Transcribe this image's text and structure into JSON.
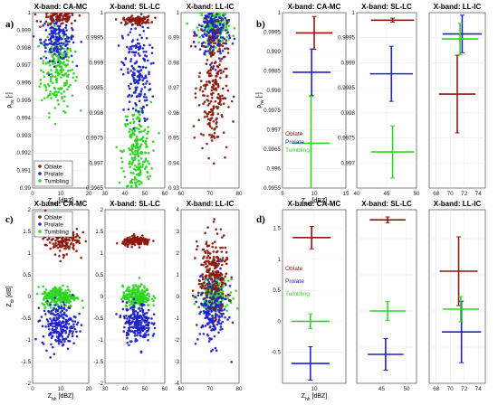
{
  "labels": {
    "a": "a)",
    "b": "b)",
    "c": "c)",
    "d": "d)"
  },
  "legend": {
    "oblate": "Oblate",
    "prolate": "Prolate",
    "tumbling": "Tumbling"
  },
  "colors": {
    "oblate": "#8b1a0e",
    "prolate": "#1f22c9",
    "tumbling": "#2fd424"
  },
  "chart_data": [
    {
      "id": "a1",
      "type": "scatter",
      "title": "X-band: CA-MC",
      "xlabel": "Z_hh [dBZ]",
      "ylabel": "ρ_hv [-]",
      "xlim": [
        0,
        20
      ],
      "ylim": [
        0.99,
        1.0
      ],
      "xticks": [
        "0",
        "10",
        "20"
      ],
      "xtick_values": [
        0,
        10,
        20
      ],
      "yticks": [
        "0.99",
        "0.991",
        "0.992",
        "0.993",
        "0.994",
        "0.995",
        "0.996",
        "0.997",
        "0.998",
        "0.999",
        "1"
      ],
      "ytick_values": [
        0.99,
        0.991,
        0.992,
        0.993,
        0.994,
        0.995,
        0.996,
        0.997,
        0.998,
        0.999,
        1.0
      ],
      "legend_position": "bottom-left",
      "series": [
        {
          "name": "Oblate",
          "x_mean": 9.5,
          "x_sd": 3.0,
          "y_mean": 0.9997,
          "y_sd": 0.0002,
          "n": 90
        },
        {
          "name": "Prolate",
          "x_mean": 9.0,
          "x_sd": 3.0,
          "y_mean": 0.9985,
          "y_sd": 0.0006,
          "n": 160
        },
        {
          "name": "Tumbling",
          "x_mean": 9.0,
          "x_sd": 3.0,
          "y_mean": 0.9968,
          "y_sd": 0.0012,
          "n": 220
        }
      ]
    },
    {
      "id": "a2",
      "type": "scatter",
      "title": "X-band: SL-LC",
      "xlim": [
        30,
        60
      ],
      "ylim": [
        0.9965,
        1.0
      ],
      "xticks": [
        "30",
        "40",
        "50",
        "60"
      ],
      "xtick_values": [
        30,
        40,
        50,
        60
      ],
      "yticks": [
        "0.9965",
        "0.997",
        "0.9975",
        "0.998",
        "0.9985",
        "0.999",
        "0.9995",
        "1"
      ],
      "ytick_values": [
        0.9965,
        0.997,
        0.9975,
        0.998,
        0.9985,
        0.999,
        0.9995,
        1.0
      ],
      "series": [
        {
          "name": "Oblate",
          "x_mean": 46,
          "x_sd": 3.5,
          "y_mean": 0.99985,
          "y_sd": 4e-05,
          "n": 110
        },
        {
          "name": "Prolate",
          "x_mean": 46,
          "x_sd": 3.5,
          "y_mean": 0.9988,
          "y_sd": 0.0005,
          "n": 180
        },
        {
          "name": "Tumbling",
          "x_mean": 46,
          "x_sd": 3.5,
          "y_mean": 0.9972,
          "y_sd": 0.0005,
          "n": 240
        }
      ]
    },
    {
      "id": "a3",
      "type": "scatter",
      "title": "X-band: LL-IC",
      "xlim": [
        60,
        80
      ],
      "ylim": [
        0.93,
        1.0
      ],
      "xticks": [
        "60",
        "70",
        "80"
      ],
      "xtick_values": [
        60,
        70,
        80
      ],
      "yticks": [
        "0.93",
        "0.94",
        "0.95",
        "0.96",
        "0.97",
        "0.98",
        "0.99",
        "1"
      ],
      "ytick_values": [
        0.93,
        0.94,
        0.95,
        0.96,
        0.97,
        0.98,
        0.99,
        1.0
      ],
      "series": [
        {
          "name": "Oblate",
          "x_mean": 71,
          "x_sd": 2.5,
          "y_mean": 0.97,
          "y_sd": 0.013,
          "n": 220
        },
        {
          "name": "Prolate",
          "x_mean": 71,
          "x_sd": 2.5,
          "y_mean": 0.992,
          "y_sd": 0.006,
          "n": 200
        },
        {
          "name": "Tumbling",
          "x_mean": 71.5,
          "x_sd": 2.5,
          "y_mean": 0.995,
          "y_sd": 0.004,
          "n": 200
        }
      ]
    },
    {
      "id": "b1",
      "type": "errorbar",
      "title": "X-band: CA-MC",
      "xlabel": "Z_hh [dBZ]",
      "ylabel": "ρ_hv [-]",
      "xlim": [
        5,
        15
      ],
      "ylim": [
        0.9955,
        1.0
      ],
      "xticks": [
        "5",
        "10",
        "15"
      ],
      "xtick_values": [
        5,
        10,
        15
      ],
      "yticks": [
        "0.9955",
        "0.996",
        "0.9965",
        "0.997",
        "0.9975",
        "0.998",
        "0.9985",
        "0.999",
        "0.9995",
        "1"
      ],
      "ytick_values": [
        0.9955,
        0.996,
        0.9965,
        0.997,
        0.9975,
        0.998,
        0.9985,
        0.999,
        0.9995,
        1.0
      ],
      "series": [
        {
          "name": "Oblate",
          "x": 10.0,
          "xerr": 2.9,
          "y": 0.99948,
          "yerr": 0.00042
        },
        {
          "name": "Prolate",
          "x": 9.6,
          "xerr": 3.0,
          "y": 0.99847,
          "yerr": 0.0006
        },
        {
          "name": "Tumbling",
          "x": 9.5,
          "xerr": 3.0,
          "y": 0.99665,
          "yerr": 0.0012
        }
      ],
      "text_labels_position": "left"
    },
    {
      "id": "b2",
      "type": "errorbar",
      "title": "X-band: SL-LC",
      "xlim": [
        40,
        50
      ],
      "ylim": [
        0.9965,
        1.0
      ],
      "xticks": [
        "40",
        "45",
        "50"
      ],
      "xtick_values": [
        40,
        45,
        50
      ],
      "yticks": [
        "0.997",
        "0.9975",
        "0.998",
        "0.9985",
        "0.999",
        "0.9995",
        "1"
      ],
      "ytick_values": [
        0.997,
        0.9975,
        0.998,
        0.9985,
        0.999,
        0.9995,
        1.0
      ],
      "series": [
        {
          "name": "Oblate",
          "x": 46.0,
          "xerr": 3.6,
          "y": 0.99985,
          "yerr": 4e-05
        },
        {
          "name": "Prolate",
          "x": 45.8,
          "xerr": 3.6,
          "y": 0.99878,
          "yerr": 0.00055
        },
        {
          "name": "Tumbling",
          "x": 46.0,
          "xerr": 3.6,
          "y": 0.99722,
          "yerr": 0.00052
        }
      ]
    },
    {
      "id": "b3",
      "type": "errorbar",
      "title": "X-band: LL-IC",
      "xlim": [
        67,
        75
      ],
      "ylim": [
        0.93,
        1.0
      ],
      "xticks": [
        "68",
        "70",
        "72",
        "74"
      ],
      "xtick_values": [
        68,
        70,
        72,
        74
      ],
      "yticks": [],
      "ytick_values": [
        0.93,
        0.94,
        0.95,
        0.96,
        0.97,
        0.98,
        0.99,
        1.0
      ],
      "series": [
        {
          "name": "Oblate",
          "x": 71.0,
          "xerr": 2.6,
          "y": 0.9675,
          "yerr": 0.0155
        },
        {
          "name": "Prolate",
          "x": 71.7,
          "xerr": 2.8,
          "y": 0.9915,
          "yerr": 0.0075
        },
        {
          "name": "Tumbling",
          "x": 71.4,
          "xerr": 2.6,
          "y": 0.9895,
          "yerr": 0.0062
        }
      ]
    },
    {
      "id": "c1",
      "type": "scatter",
      "title": "X-band: CA-MC",
      "xlabel": "Z_hh [dBZ]",
      "ylabel": "Z_dr [dB]",
      "xlim": [
        0,
        20
      ],
      "ylim": [
        -2,
        2
      ],
      "xticks": [
        "0",
        "10",
        "20"
      ],
      "xtick_values": [
        0,
        10,
        20
      ],
      "yticks": [
        "-2",
        "-1.5",
        "-1",
        "-0.5",
        "0",
        "0.5",
        "1",
        "1.5",
        "2"
      ],
      "ytick_values": [
        -2,
        -1.5,
        -1,
        -0.5,
        0,
        0.5,
        1,
        1.5,
        2
      ],
      "legend_position": "top-left",
      "series": [
        {
          "name": "Oblate",
          "x_mean": 10.5,
          "x_sd": 3.0,
          "y_mean": 1.35,
          "y_sd": 0.18,
          "n": 180
        },
        {
          "name": "Prolate",
          "x_mean": 9.5,
          "x_sd": 3.0,
          "y_mean": -0.65,
          "y_sd": 0.25,
          "n": 220
        },
        {
          "name": "Tumbling",
          "x_mean": 9.5,
          "x_sd": 3.0,
          "y_mean": 0.0,
          "y_sd": 0.12,
          "n": 240
        }
      ]
    },
    {
      "id": "c2",
      "type": "scatter",
      "title": "X-band: SL-LC",
      "xlim": [
        30,
        60
      ],
      "ylim": [
        -2,
        2
      ],
      "xticks": [
        "30",
        "40",
        "50",
        "60"
      ],
      "xtick_values": [
        30,
        40,
        50,
        60
      ],
      "yticks": [
        "-2",
        "-1.5",
        "-1",
        "-0.5",
        "0",
        "0.5",
        "1",
        "1.5",
        "2"
      ],
      "ytick_values": [
        -2,
        -1.5,
        -1,
        -0.5,
        0,
        0.5,
        1,
        1.5,
        2
      ],
      "series": [
        {
          "name": "Oblate",
          "x_mean": 46,
          "x_sd": 3.5,
          "y_mean": 1.27,
          "y_sd": 0.05,
          "n": 160
        },
        {
          "name": "Prolate",
          "x_mean": 46,
          "x_sd": 3.5,
          "y_mean": -0.6,
          "y_sd": 0.22,
          "n": 220
        },
        {
          "name": "Tumbling",
          "x_mean": 46,
          "x_sd": 3.5,
          "y_mean": 0.0,
          "y_sd": 0.12,
          "n": 240
        }
      ]
    },
    {
      "id": "c3",
      "type": "scatter",
      "title": "X-band: LL-IC",
      "xlim": [
        60,
        80
      ],
      "ylim": [
        -4,
        4
      ],
      "xticks": [
        "60",
        "70",
        "80"
      ],
      "xtick_values": [
        60,
        70,
        80
      ],
      "yticks": [
        "-4",
        "-3",
        "-2",
        "-1",
        "0",
        "1",
        "2",
        "3",
        "4"
      ],
      "ytick_values": [
        -4,
        -3,
        -2,
        -1,
        0,
        1,
        2,
        3,
        4
      ],
      "series": [
        {
          "name": "Oblate",
          "x_mean": 71,
          "x_sd": 2.5,
          "y_mean": 1.1,
          "y_sd": 0.9,
          "n": 220
        },
        {
          "name": "Prolate",
          "x_mean": 71,
          "x_sd": 2.5,
          "y_mean": -0.6,
          "y_sd": 0.8,
          "n": 220
        },
        {
          "name": "Tumbling",
          "x_mean": 71.5,
          "x_sd": 2.5,
          "y_mean": 0.05,
          "y_sd": 0.35,
          "n": 200
        }
      ]
    },
    {
      "id": "d1",
      "type": "errorbar",
      "title": "X-band: CA-MC",
      "xlabel": "Z_hh [dBZ]",
      "xlim": [
        5,
        15
      ],
      "ylim": [
        -1,
        1.8
      ],
      "xticks": [
        "10"
      ],
      "xtick_values": [
        10
      ],
      "yticks": [
        "-0.5",
        "0",
        "0.5",
        "1",
        "1.5"
      ],
      "ytick_values": [
        -0.5,
        0,
        0.5,
        1,
        1.5
      ],
      "series": [
        {
          "name": "Oblate",
          "x": 9.6,
          "xerr": 3.0,
          "y": 1.35,
          "yerr": 0.18
        },
        {
          "name": "Prolate",
          "x": 9.4,
          "xerr": 3.0,
          "y": -0.68,
          "yerr": 0.27
        },
        {
          "name": "Tumbling",
          "x": 9.4,
          "xerr": 3.0,
          "y": 0.0,
          "yerr": 0.12
        }
      ],
      "text_labels_position": "left"
    },
    {
      "id": "d2",
      "type": "errorbar",
      "title": "X-band: SL-LC",
      "xlim": [
        40,
        52
      ],
      "ylim": [
        -1,
        1.4
      ],
      "xticks": [
        "45",
        "50"
      ],
      "xtick_values": [
        45,
        50
      ],
      "yticks": [],
      "ytick_values": [
        -1,
        -0.5,
        0,
        0.5,
        1
      ],
      "series": [
        {
          "name": "Oblate",
          "x": 46.2,
          "xerr": 3.6,
          "y": 1.26,
          "yerr": 0.04
        },
        {
          "name": "Prolate",
          "x": 45.8,
          "xerr": 3.6,
          "y": -0.6,
          "yerr": 0.22
        },
        {
          "name": "Tumbling",
          "x": 46.2,
          "xerr": 3.6,
          "y": 0.0,
          "yerr": 0.13
        }
      ]
    },
    {
      "id": "d3",
      "type": "errorbar",
      "title": "X-band: LL-IC",
      "xlim": [
        67,
        75
      ],
      "ylim": [
        -2,
        2.8
      ],
      "xticks": [
        "68",
        "70",
        "72",
        "74"
      ],
      "xtick_values": [
        68,
        70,
        72,
        74
      ],
      "yticks": [],
      "ytick_values": [
        -2,
        -1,
        0,
        1,
        2
      ],
      "series": [
        {
          "name": "Oblate",
          "x": 71.2,
          "xerr": 2.7,
          "y": 1.1,
          "yerr": 0.95
        },
        {
          "name": "Prolate",
          "x": 71.6,
          "xerr": 2.8,
          "y": -0.58,
          "yerr": 0.85
        },
        {
          "name": "Tumbling",
          "x": 71.5,
          "xerr": 2.6,
          "y": 0.05,
          "yerr": 0.35
        }
      ]
    }
  ]
}
